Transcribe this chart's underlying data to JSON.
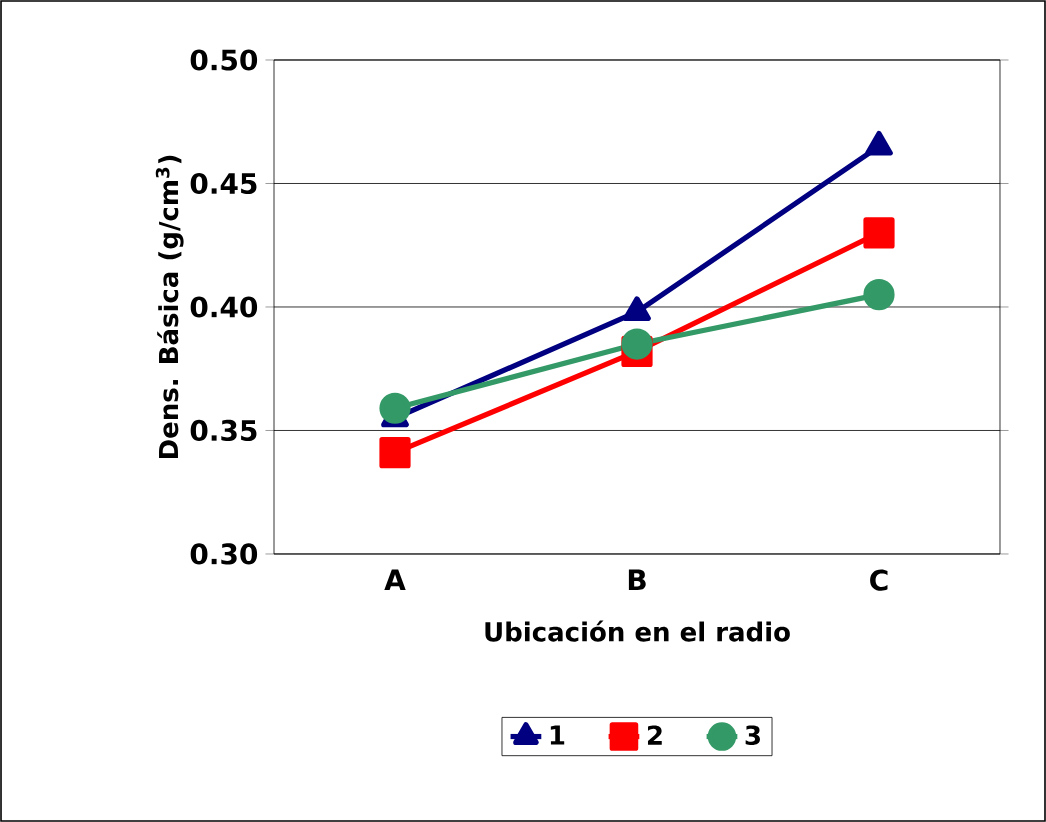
{
  "chart_data": {
    "type": "line",
    "xlabel": "Ubicación en el radio",
    "ylabel": "Dens. Básica (g/cm$^{3}$)",
    "categories": [
      "A",
      "B",
      "C"
    ],
    "series": [
      {
        "name": "1",
        "color": "#000080",
        "marker": "triangle",
        "values": [
          0.355,
          0.398,
          0.465
        ]
      },
      {
        "name": "2",
        "color": "#ff0000",
        "marker": "square",
        "values": [
          0.341,
          0.382,
          0.43
        ]
      },
      {
        "name": "3",
        "color": "#339966",
        "marker": "circle",
        "values": [
          0.359,
          0.385,
          0.405
        ]
      }
    ],
    "ylim": [
      0.3,
      0.5
    ],
    "yticks": [
      {
        "value": 0.3,
        "label": "0.30"
      },
      {
        "value": 0.35,
        "label": "0.35"
      },
      {
        "value": 0.4,
        "label": "0.40"
      },
      {
        "value": 0.45,
        "label": "0.45"
      },
      {
        "value": 0.5,
        "label": "0.50"
      }
    ],
    "grid": "y",
    "legend": "bottom",
    "line_style": "solid"
  }
}
